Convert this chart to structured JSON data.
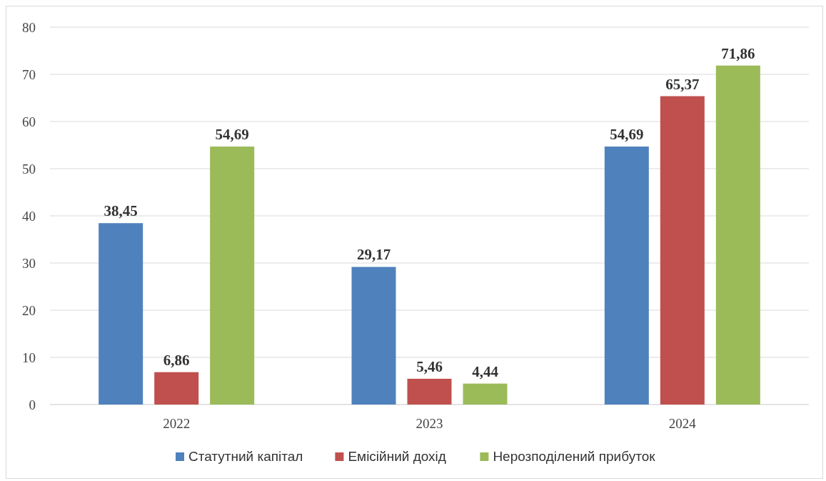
{
  "chart_data": {
    "type": "bar",
    "categories": [
      "2022",
      "2023",
      "2024"
    ],
    "series": [
      {
        "name": "Статутний капітал",
        "color": "#4f81bd",
        "values": [
          38.45,
          29.17,
          54.69
        ],
        "value_labels": [
          "38,45",
          "29,17",
          "54,69"
        ]
      },
      {
        "name": "Емісійний дохід",
        "color": "#c0504d",
        "values": [
          6.86,
          5.46,
          65.37
        ],
        "value_labels": [
          "6,86",
          "5,46",
          "65,37"
        ]
      },
      {
        "name": "Нерозподілений прибуток",
        "color": "#9bbb59",
        "values": [
          54.69,
          4.44,
          71.86
        ],
        "value_labels": [
          "54,69",
          "4,44",
          "71,86"
        ]
      }
    ],
    "ylim": [
      0,
      80
    ],
    "yticks": [
      0,
      10,
      20,
      30,
      40,
      50,
      60,
      70,
      80
    ],
    "grid": "y",
    "legend": "bottom"
  }
}
